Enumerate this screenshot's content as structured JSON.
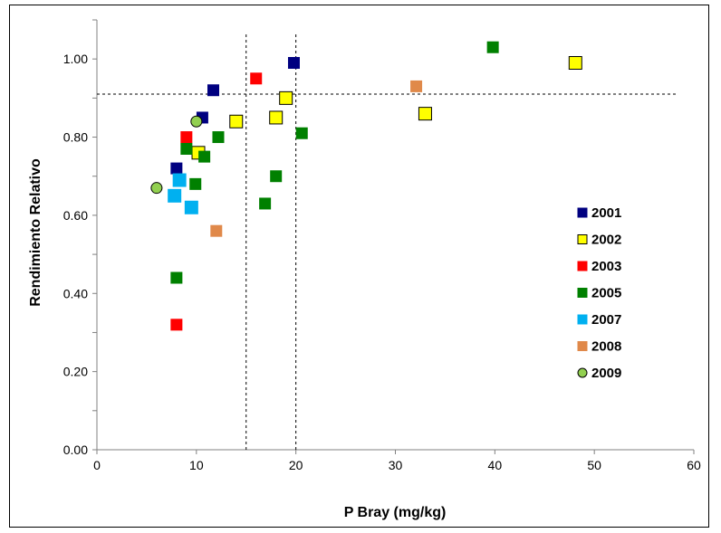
{
  "chart_data": {
    "type": "scatter",
    "title": "",
    "xlabel": "P Bray (mg/kg)",
    "ylabel": "Rendimiento Relativo",
    "xlim": [
      0,
      60
    ],
    "ylim": [
      0,
      1.1
    ],
    "xticks": [
      0,
      10,
      20,
      30,
      40,
      50,
      60
    ],
    "xtick_labels": [
      "0",
      "10",
      "20",
      "30",
      "40",
      "50",
      "60"
    ],
    "yticks": [
      0,
      0.2,
      0.4,
      0.6,
      0.8,
      1.0
    ],
    "ytick_labels": [
      "0.00",
      "0.20",
      "0.40",
      "0.60",
      "0.80",
      "1.00"
    ],
    "grid": false,
    "legend_position": "right",
    "reference_lines": {
      "vertical_x": [
        15,
        20
      ],
      "horizontal_y": [
        0.91
      ]
    },
    "series": [
      {
        "name": "2001",
        "marker": "square",
        "color": "#000080",
        "points": [
          [
            11.7,
            0.92
          ],
          [
            19.8,
            0.99
          ],
          [
            10.6,
            0.85
          ],
          [
            8.0,
            0.72
          ]
        ]
      },
      {
        "name": "2002",
        "marker": "square",
        "color": "#FFFF00",
        "points": [
          [
            48.1,
            0.99
          ],
          [
            19.0,
            0.9
          ],
          [
            14.0,
            0.84
          ],
          [
            18.0,
            0.85
          ],
          [
            33.0,
            0.86
          ],
          [
            10.2,
            0.76
          ]
        ]
      },
      {
        "name": "2003",
        "marker": "square",
        "color": "#FF0000",
        "points": [
          [
            16.0,
            0.95
          ],
          [
            9.0,
            0.8
          ],
          [
            8.0,
            0.32
          ]
        ]
      },
      {
        "name": "2005",
        "marker": "square",
        "color": "#008000",
        "points": [
          [
            39.8,
            1.03
          ],
          [
            20.6,
            0.81
          ],
          [
            12.2,
            0.8
          ],
          [
            9.0,
            0.77
          ],
          [
            10.8,
            0.75
          ],
          [
            18.0,
            0.7
          ],
          [
            9.9,
            0.68
          ],
          [
            16.9,
            0.63
          ],
          [
            8.0,
            0.44
          ]
        ]
      },
      {
        "name": "2007",
        "marker": "square",
        "color": "#00B0F0",
        "points": [
          [
            8.3,
            0.69
          ],
          [
            7.8,
            0.65
          ],
          [
            9.5,
            0.62
          ]
        ]
      },
      {
        "name": "2008",
        "marker": "square",
        "color": "#E0894A",
        "points": [
          [
            32.1,
            0.93
          ],
          [
            12.0,
            0.56
          ]
        ]
      },
      {
        "name": "2009",
        "marker": "circle",
        "color": "#92D050",
        "points": [
          [
            10.0,
            0.84
          ],
          [
            6.0,
            0.67
          ]
        ]
      }
    ]
  }
}
